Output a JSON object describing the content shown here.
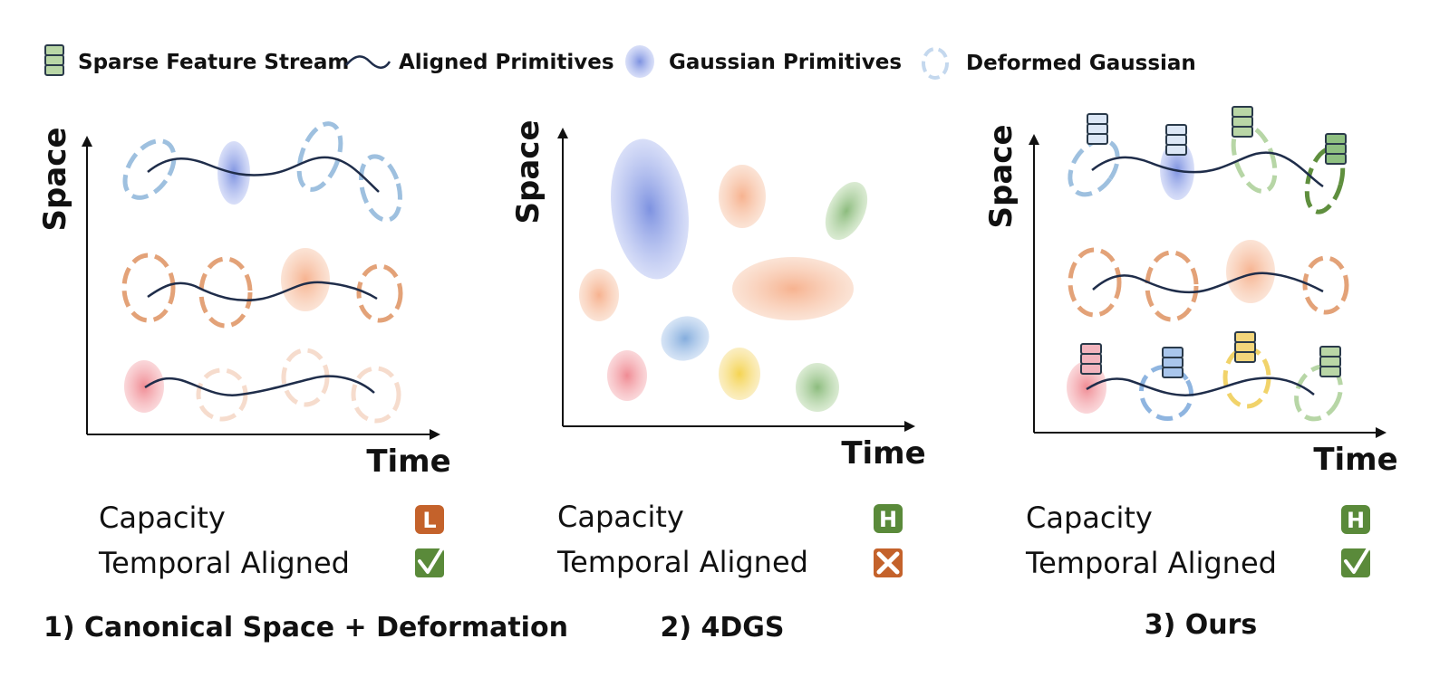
{
  "legend": {
    "items": [
      {
        "label": "Sparse Feature Stream",
        "icon": "feature-stack-icon"
      },
      {
        "label": "Aligned Primitives",
        "icon": "wave-line-icon"
      },
      {
        "label": "Gaussian Primitives",
        "icon": "gaussian-blob-icon"
      },
      {
        "label": "Deformed Gaussian",
        "icon": "dashed-ellipse-icon"
      }
    ]
  },
  "panels": [
    {
      "id": "canonical",
      "axis_y_label": "Space",
      "axis_x_label": "Time",
      "caption": "1) Canonical Space + Deformation",
      "metrics": [
        {
          "label": "Capacity",
          "badge": "L",
          "badge_type": "low"
        },
        {
          "label": "Temporal Aligned",
          "badge": "✓",
          "badge_type": "check"
        }
      ]
    },
    {
      "id": "4dgs",
      "axis_y_label": "Space",
      "axis_x_label": "Time",
      "caption": "2) 4DGS",
      "metrics": [
        {
          "label": "Capacity",
          "badge": "H",
          "badge_type": "high"
        },
        {
          "label": "Temporal Aligned",
          "badge": "✕",
          "badge_type": "cross"
        }
      ]
    },
    {
      "id": "ours",
      "axis_y_label": "Space",
      "axis_x_label": "Time",
      "caption": "3) Ours",
      "metrics": [
        {
          "label": "Capacity",
          "badge": "H",
          "badge_type": "high"
        },
        {
          "label": "Temporal Aligned",
          "badge": "✓",
          "badge_type": "check"
        }
      ]
    }
  ],
  "colors": {
    "blue": "#7f93e0",
    "blue_dashed": "#9ec0df",
    "orange": "#f2b48f",
    "orange_dashed": "#e3a278",
    "red": "#ee8f96",
    "light_orange_dashed": "#f6dccd",
    "green": "#8fc081",
    "green_dashed": "#b7d6a6",
    "dark_green_dashed": "#5f8f3e",
    "yellow": "#f1d36a",
    "light_blue": "#8fb5e0",
    "navy_line": "#1f2d4a",
    "badge_orange": "#c4622b",
    "badge_green": "#5a8a3a",
    "stack_green": "#b9d6a6",
    "stack_light_blue": "#dce7f6",
    "stack_blue": "#a9c6ec",
    "stack_pink": "#f2b4bd",
    "stack_yellow": "#f3d67b"
  }
}
